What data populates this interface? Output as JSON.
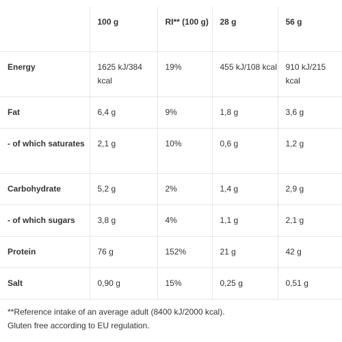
{
  "table": {
    "headers": [
      "",
      "100 g",
      "RI** (100 g)",
      "28 g",
      "56 g"
    ],
    "rows": [
      {
        "label": "Energy",
        "per100": "1625 kJ/384 kcal",
        "ri": "19%",
        "per28": "455 kJ/108 kcal",
        "per56": "910 kJ/215 kcal"
      },
      {
        "label": "Fat",
        "per100": "6,4 g",
        "ri": "9%",
        "per28": "1,8 g",
        "per56": "3,6 g"
      },
      {
        "label": "- of which saturates",
        "per100": "2,1 g",
        "ri": "10%",
        "per28": "0,6 g",
        "per56": "1,2 g"
      },
      {
        "label": "Carbohydrate",
        "per100": "5,2 g",
        "ri": "2%",
        "per28": "1,4 g",
        "per56": "2,9 g"
      },
      {
        "label": "- of which sugars",
        "per100": "3,8 g",
        "ri": "4%",
        "per28": "1,1 g",
        "per56": "2,1 g"
      },
      {
        "label": "Protein",
        "per100": "76 g",
        "ri": "152%",
        "per28": "21 g",
        "per56": "42 g"
      },
      {
        "label": "Salt",
        "per100": "0,90 g",
        "ri": "15%",
        "per28": "0,25 g",
        "per56": "0,51 g"
      }
    ]
  },
  "footnotes": {
    "reference": "**Reference intake of an average adult (8400 kJ/2000 kcal).",
    "gluten": "Gluten free according to EU regulation."
  }
}
